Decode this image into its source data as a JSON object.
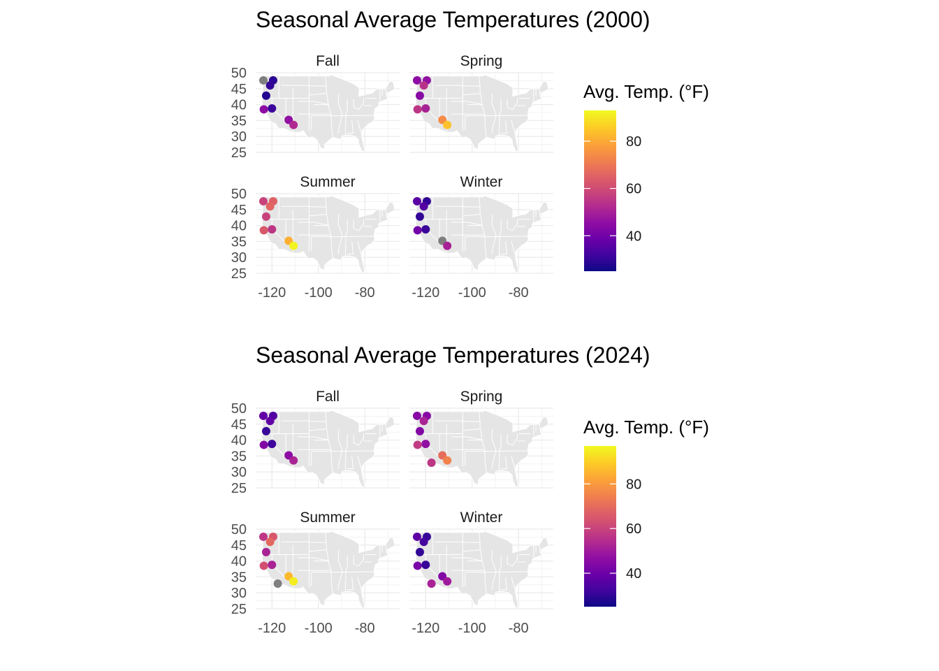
{
  "chart_data": [
    {
      "type": "scatter",
      "subtype": "faceted map scatter",
      "title": "Seasonal Average Temperatures (2000)",
      "legend": {
        "title": "Avg. Temp. (°F)",
        "ticks": [
          40,
          60,
          80
        ],
        "range": [
          25,
          93
        ],
        "palette": "plasma",
        "placement": "right"
      },
      "xlim": [
        -127,
        -65
      ],
      "ylim": [
        25,
        50
      ],
      "x_ticks": [
        "-120",
        "-100",
        "-80"
      ],
      "y_ticks": [
        "50",
        "45",
        "40",
        "35",
        "30",
        "25"
      ],
      "grid": true,
      "missing_color": "#7f7f7f",
      "facets": [
        {
          "label": "Fall",
          "points": [
            {
              "lon": -123.7,
              "lat": 47.6,
              "temp": null
            },
            {
              "lon": -119.5,
              "lat": 47.6,
              "temp": 29
            },
            {
              "lon": -120.8,
              "lat": 46.0,
              "temp": 30
            },
            {
              "lon": -122.5,
              "lat": 42.8,
              "temp": 28
            },
            {
              "lon": -123.5,
              "lat": 38.5,
              "temp": 45
            },
            {
              "lon": -120.0,
              "lat": 38.8,
              "temp": 31
            },
            {
              "lon": -112.8,
              "lat": 35.2,
              "temp": 46
            },
            {
              "lon": -110.7,
              "lat": 33.6,
              "temp": 52
            }
          ]
        },
        {
          "label": "Spring",
          "points": [
            {
              "lon": -123.7,
              "lat": 47.6,
              "temp": 45
            },
            {
              "lon": -119.5,
              "lat": 47.6,
              "temp": 46
            },
            {
              "lon": -120.8,
              "lat": 46.0,
              "temp": 54
            },
            {
              "lon": -122.5,
              "lat": 42.8,
              "temp": 44
            },
            {
              "lon": -123.5,
              "lat": 38.5,
              "temp": 55
            },
            {
              "lon": -120.0,
              "lat": 38.8,
              "temp": 50
            },
            {
              "lon": -112.8,
              "lat": 35.2,
              "temp": 74
            },
            {
              "lon": -110.7,
              "lat": 33.6,
              "temp": 84
            }
          ]
        },
        {
          "label": "Summer",
          "points": [
            {
              "lon": -123.7,
              "lat": 47.6,
              "temp": 58
            },
            {
              "lon": -119.5,
              "lat": 47.6,
              "temp": 65
            },
            {
              "lon": -120.8,
              "lat": 46.0,
              "temp": 66
            },
            {
              "lon": -122.5,
              "lat": 42.8,
              "temp": 58
            },
            {
              "lon": -123.5,
              "lat": 38.5,
              "temp": 63
            },
            {
              "lon": -120.0,
              "lat": 38.8,
              "temp": 55
            },
            {
              "lon": -112.8,
              "lat": 35.2,
              "temp": 81
            },
            {
              "lon": -110.7,
              "lat": 33.6,
              "temp": 92
            }
          ]
        },
        {
          "label": "Winter",
          "points": [
            {
              "lon": -123.7,
              "lat": 47.6,
              "temp": 36
            },
            {
              "lon": -119.5,
              "lat": 47.6,
              "temp": 30
            },
            {
              "lon": -120.8,
              "lat": 46.0,
              "temp": 35
            },
            {
              "lon": -122.5,
              "lat": 42.8,
              "temp": 30
            },
            {
              "lon": -123.5,
              "lat": 38.5,
              "temp": 40
            },
            {
              "lon": -120.0,
              "lat": 38.8,
              "temp": 31
            },
            {
              "lon": -112.8,
              "lat": 35.2,
              "temp": null
            },
            {
              "lon": -110.7,
              "lat": 33.6,
              "temp": 50
            }
          ]
        }
      ]
    },
    {
      "type": "scatter",
      "subtype": "faceted map scatter",
      "title": "Seasonal Average Temperatures (2024)",
      "legend": {
        "title": "Avg. Temp. (°F)",
        "ticks": [
          40,
          60,
          80
        ],
        "range": [
          25,
          97
        ],
        "palette": "plasma",
        "placement": "right"
      },
      "xlim": [
        -127,
        -65
      ],
      "ylim": [
        25,
        50
      ],
      "x_ticks": [
        "-120",
        "-100",
        "-80"
      ],
      "y_ticks": [
        "50",
        "45",
        "40",
        "35",
        "30",
        "25"
      ],
      "grid": true,
      "missing_color": "#7f7f7f",
      "facets": [
        {
          "label": "Fall",
          "points": [
            {
              "lon": -123.7,
              "lat": 47.6,
              "temp": 38
            },
            {
              "lon": -119.5,
              "lat": 47.6,
              "temp": 35
            },
            {
              "lon": -120.8,
              "lat": 46.0,
              "temp": 38
            },
            {
              "lon": -122.5,
              "lat": 42.8,
              "temp": 31
            },
            {
              "lon": -123.5,
              "lat": 38.5,
              "temp": 44
            },
            {
              "lon": -120.0,
              "lat": 38.8,
              "temp": 32
            },
            {
              "lon": -112.8,
              "lat": 35.2,
              "temp": 46
            },
            {
              "lon": -110.7,
              "lat": 33.6,
              "temp": 52
            }
          ]
        },
        {
          "label": "Spring",
          "points": [
            {
              "lon": -123.7,
              "lat": 47.6,
              "temp": 45
            },
            {
              "lon": -119.5,
              "lat": 47.6,
              "temp": 45
            },
            {
              "lon": -120.8,
              "lat": 46.0,
              "temp": 52
            },
            {
              "lon": -122.5,
              "lat": 42.8,
              "temp": 44
            },
            {
              "lon": -123.5,
              "lat": 38.5,
              "temp": 58
            },
            {
              "lon": -120.0,
              "lat": 38.8,
              "temp": 47
            },
            {
              "lon": -112.8,
              "lat": 35.2,
              "temp": 70
            },
            {
              "lon": -110.7,
              "lat": 33.6,
              "temp": 75
            },
            {
              "lon": -117.5,
              "lat": 32.9,
              "temp": 57
            }
          ]
        },
        {
          "label": "Summer",
          "points": [
            {
              "lon": -123.7,
              "lat": 47.6,
              "temp": 57
            },
            {
              "lon": -119.5,
              "lat": 47.6,
              "temp": 65
            },
            {
              "lon": -120.8,
              "lat": 46.0,
              "temp": 69
            },
            {
              "lon": -122.5,
              "lat": 42.8,
              "temp": 52
            },
            {
              "lon": -123.5,
              "lat": 38.5,
              "temp": 63
            },
            {
              "lon": -120.0,
              "lat": 38.8,
              "temp": 52
            },
            {
              "lon": -112.8,
              "lat": 35.2,
              "temp": 86
            },
            {
              "lon": -110.7,
              "lat": 33.6,
              "temp": 95
            },
            {
              "lon": -117.5,
              "lat": 32.9,
              "temp": null
            }
          ]
        },
        {
          "label": "Winter",
          "points": [
            {
              "lon": -123.7,
              "lat": 47.6,
              "temp": 37
            },
            {
              "lon": -119.5,
              "lat": 47.6,
              "temp": 31
            },
            {
              "lon": -120.8,
              "lat": 46.0,
              "temp": 33
            },
            {
              "lon": -122.5,
              "lat": 42.8,
              "temp": 30
            },
            {
              "lon": -123.5,
              "lat": 38.5,
              "temp": 42
            },
            {
              "lon": -120.0,
              "lat": 38.8,
              "temp": 31
            },
            {
              "lon": -112.8,
              "lat": 35.2,
              "temp": 44
            },
            {
              "lon": -110.7,
              "lat": 33.6,
              "temp": 50
            },
            {
              "lon": -117.5,
              "lat": 32.9,
              "temp": 52
            }
          ]
        }
      ]
    }
  ]
}
